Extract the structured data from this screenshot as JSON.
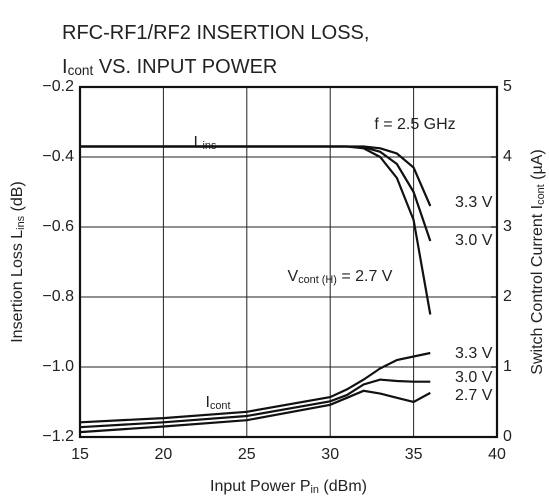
{
  "chart_data": {
    "type": "line",
    "title": [
      [
        "RFC-RF1/RF2  INSERTION LOSS,"
      ],
      [
        "I",
        "cont",
        " VS. INPUT POWER"
      ]
    ],
    "xlabel": [
      "Input Power  P",
      "in",
      " (dBm)"
    ],
    "ylabel": [
      "Insertion Loss  L",
      "ins",
      " (dB)"
    ],
    "y2label": [
      "Switch Control Current  I",
      "cont",
      " (µA)"
    ],
    "xlim": [
      15,
      40
    ],
    "xticks": [
      15,
      20,
      25,
      30,
      35,
      40
    ],
    "ylim": [
      -1.2,
      -0.2
    ],
    "yticks": [
      {
        "value": -1.2,
        "label": "−1.2"
      },
      {
        "value": -1.0,
        "label": "−1.0"
      },
      {
        "value": -0.8,
        "label": "−0.8"
      },
      {
        "value": -0.6,
        "label": "−0.6"
      },
      {
        "value": -0.4,
        "label": "−0.4"
      },
      {
        "value": -0.2,
        "label": "−0.2"
      }
    ],
    "y2lim": [
      0,
      5
    ],
    "y2ticks": [
      0,
      1,
      2,
      3,
      4,
      5
    ],
    "grid": true,
    "annotations": [
      [
        "f = 2.5 GHz"
      ],
      [
        "L",
        "ins"
      ],
      [
        "I",
        "cont"
      ]
    ],
    "series": [
      {
        "name": [
          "3.3 V"
        ],
        "color": "#111111",
        "x": [
          15,
          20,
          25,
          30,
          31,
          32,
          33,
          34,
          35,
          36
        ],
        "values": [
          -0.37,
          -0.37,
          -0.37,
          -0.37,
          -0.37,
          -0.37,
          -0.375,
          -0.39,
          -0.43,
          -0.54
        ]
      },
      {
        "name": [
          "3.0 V"
        ],
        "color": "#111111",
        "x": [
          15,
          20,
          25,
          30,
          31,
          32,
          33,
          34,
          35,
          36
        ],
        "values": [
          -0.37,
          -0.37,
          -0.37,
          -0.37,
          -0.37,
          -0.372,
          -0.385,
          -0.42,
          -0.5,
          -0.64
        ]
      },
      {
        "name": [
          "V",
          "cont (H)",
          " = 2.7 V"
        ],
        "color": "#111111",
        "x": [
          15,
          20,
          25,
          30,
          31,
          32,
          33,
          34,
          35,
          36
        ],
        "values": [
          -0.37,
          -0.37,
          -0.37,
          -0.37,
          -0.37,
          -0.375,
          -0.4,
          -0.46,
          -0.58,
          -0.85
        ]
      },
      {
        "name": [
          "3.3 V"
        ],
        "color": "#111111",
        "axis": "y2",
        "x": [
          15,
          20,
          25,
          30,
          31,
          32,
          33,
          34,
          35,
          36
        ],
        "values": [
          0.21,
          0.27,
          0.36,
          0.57,
          0.68,
          0.82,
          0.98,
          1.1,
          1.15,
          1.2
        ]
      },
      {
        "name": [
          "3.0 V"
        ],
        "color": "#111111",
        "axis": "y2",
        "x": [
          15,
          20,
          25,
          30,
          31,
          32,
          33,
          34,
          35,
          36
        ],
        "values": [
          0.14,
          0.21,
          0.3,
          0.51,
          0.6,
          0.75,
          0.82,
          0.8,
          0.79,
          0.79
        ]
      },
      {
        "name": [
          "2.7 V"
        ],
        "color": "#111111",
        "axis": "y2",
        "x": [
          15,
          20,
          25,
          30,
          31,
          32,
          33,
          34,
          35,
          36
        ],
        "values": [
          0.07,
          0.15,
          0.24,
          0.46,
          0.56,
          0.66,
          0.62,
          0.56,
          0.5,
          0.63
        ]
      }
    ]
  }
}
